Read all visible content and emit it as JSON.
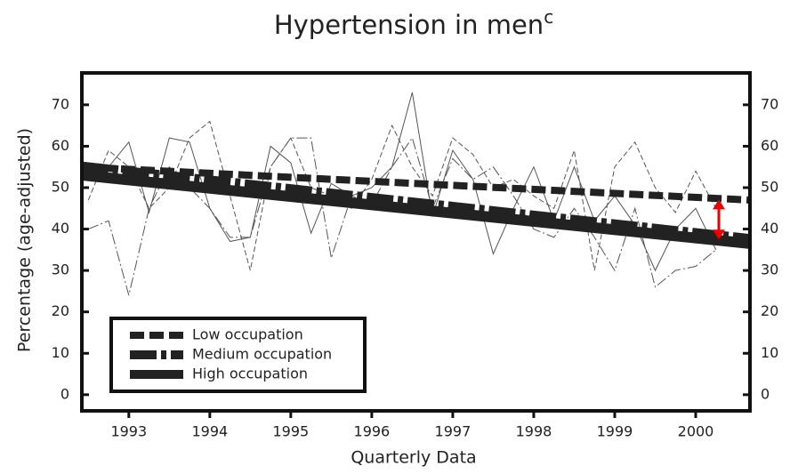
{
  "chart_data": {
    "type": "line",
    "title": "Hypertension in men",
    "title_superscript": "c",
    "x_label": "Quarterly Data",
    "y_label": "Percentage (age-adjusted)",
    "x": [
      1992.5,
      1992.75,
      1993,
      1993.25,
      1993.5,
      1993.75,
      1994,
      1994.25,
      1994.5,
      1994.75,
      1995,
      1995.25,
      1995.5,
      1995.75,
      1996,
      1996.25,
      1996.5,
      1996.75,
      1997,
      1997.25,
      1997.5,
      1997.75,
      1998,
      1998.25,
      1998.5,
      1998.75,
      1999,
      1999.25,
      1999.5,
      1999.75,
      2000,
      2000.25
    ],
    "trend_x": [
      1992.42,
      2000.67
    ],
    "series": [
      {
        "name": "Low occupation",
        "color": "#222222",
        "dash": "6 3",
        "trend_dash": "16 6",
        "values": [
          47,
          59,
          55,
          45,
          50,
          62,
          66,
          48,
          30,
          55,
          62,
          50,
          48,
          45,
          52,
          65,
          55,
          48,
          62,
          58,
          50,
          52,
          48,
          45,
          59,
          30,
          55,
          61,
          50,
          44,
          54,
          45
        ],
        "trend": [
          55,
          47
        ]
      },
      {
        "name": "Medium occupation",
        "color": "#222222",
        "dash": "12 3 2 3",
        "trend_dash": "30 5 6 5",
        "values": [
          40,
          42,
          24,
          45,
          55,
          50,
          45,
          38,
          38,
          55,
          62,
          62,
          33,
          48,
          46,
          55,
          62,
          45,
          57,
          52,
          55,
          48,
          40,
          38,
          45,
          38,
          30,
          45,
          26,
          30,
          31,
          35
        ],
        "trend": [
          55,
          37.5
        ]
      },
      {
        "name": "High occupation",
        "color": "#222222",
        "dash": "none",
        "trend_dash": "none",
        "values": [
          52,
          55,
          61,
          44,
          62,
          61,
          45,
          37,
          38,
          60,
          56,
          39,
          51,
          48,
          50,
          55,
          73,
          43,
          59,
          52,
          34,
          45,
          55,
          42,
          55,
          42,
          48,
          41,
          30,
          40,
          45,
          35
        ],
        "trend": [
          53,
          36.5
        ]
      }
    ],
    "xlim": [
      1992.42,
      2000.67
    ],
    "xticks": [
      1993,
      1994,
      1995,
      1996,
      1997,
      1998,
      1999,
      2000
    ],
    "ylim": [
      -3.9,
      77.7
    ],
    "yticks": [
      0,
      10,
      20,
      30,
      40,
      50,
      60,
      70
    ],
    "right_axis": true
  }
}
